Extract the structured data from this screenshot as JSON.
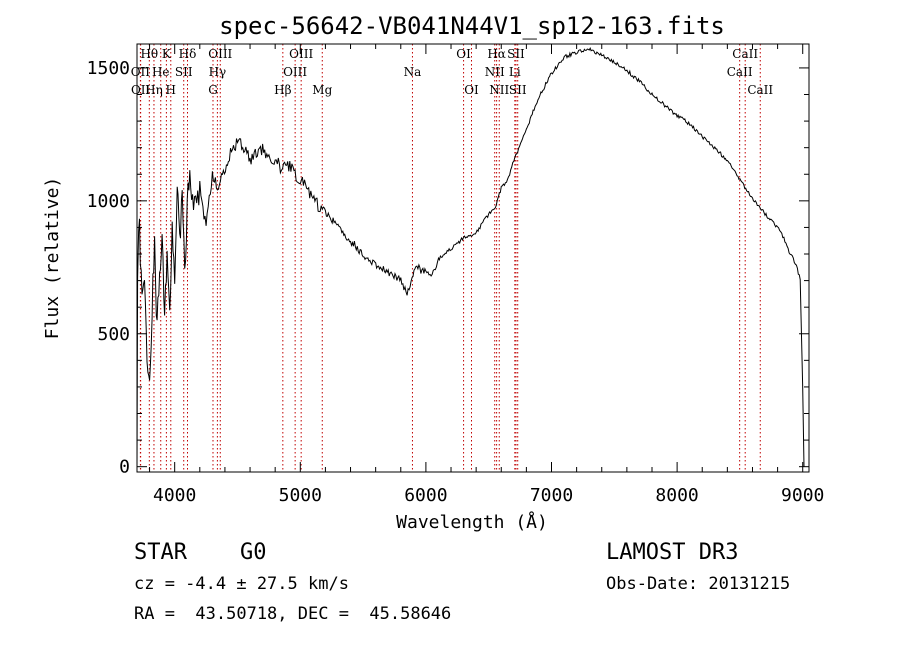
{
  "chart_data": {
    "type": "line",
    "title": "spec-56642-VB041N44V1_sp12-163.fits",
    "xlabel": "Wavelength (Å)",
    "ylabel": "Flux (relative)",
    "xlim": [
      3700,
      9050
    ],
    "ylim": [
      -20,
      1590
    ],
    "x_ticks": [
      4000,
      5000,
      6000,
      7000,
      8000,
      9000
    ],
    "y_ticks": [
      0,
      500,
      1000,
      1500
    ],
    "series": [
      {
        "name": "flux",
        "x": [
          3700,
          3705,
          3720,
          3740,
          3760,
          3780,
          3800,
          3820,
          3840,
          3860,
          3880,
          3900,
          3920,
          3940,
          3960,
          3980,
          4000,
          4020,
          4040,
          4060,
          4080,
          4100,
          4120,
          4150,
          4200,
          4250,
          4300,
          4340,
          4380,
          4420,
          4460,
          4500,
          4550,
          4600,
          4650,
          4700,
          4750,
          4800,
          4850,
          4900,
          4950,
          5000,
          5050,
          5100,
          5150,
          5200,
          5300,
          5400,
          5500,
          5600,
          5700,
          5800,
          5850,
          5890,
          5920,
          5960,
          6000,
          6050,
          6100,
          6200,
          6300,
          6400,
          6500,
          6560,
          6570,
          6600,
          6650,
          6700,
          6800,
          6900,
          7000,
          7100,
          7200,
          7300,
          7400,
          7500,
          7600,
          7700,
          7800,
          7900,
          8000,
          8100,
          8200,
          8300,
          8400,
          8500,
          8600,
          8700,
          8800,
          8850,
          8900,
          8950,
          8980,
          9000,
          9010
        ],
        "y": [
          0,
          750,
          900,
          650,
          700,
          450,
          300,
          600,
          850,
          500,
          750,
          850,
          600,
          800,
          550,
          900,
          700,
          1050,
          850,
          1000,
          700,
          1000,
          1100,
          950,
          1050,
          900,
          1100,
          1050,
          1100,
          1150,
          1200,
          1220,
          1200,
          1150,
          1180,
          1200,
          1150,
          1160,
          1120,
          1140,
          1110,
          1080,
          1050,
          1000,
          980,
          960,
          900,
          850,
          800,
          760,
          730,
          700,
          650,
          700,
          760,
          740,
          730,
          720,
          780,
          820,
          860,
          880,
          950,
          980,
          1000,
          1050,
          1080,
          1150,
          1270,
          1390,
          1480,
          1540,
          1560,
          1570,
          1550,
          1520,
          1490,
          1450,
          1400,
          1360,
          1320,
          1290,
          1240,
          1200,
          1150,
          1080,
          1010,
          950,
          900,
          860,
          800,
          760,
          700,
          300,
          0
        ]
      }
    ],
    "lines_top": [
      {
        "label": "Hθ",
        "x": 3798
      },
      {
        "label": "K",
        "x": 3934
      },
      {
        "label": "Hδ",
        "x": 4102
      },
      {
        "label": "OIII",
        "x": 4363
      },
      {
        "label": "OIII",
        "x": 5007
      },
      {
        "label": "OI",
        "x": 6300
      },
      {
        "label": "Hα",
        "x": 6563
      },
      {
        "label": "SII",
        "x": 6717
      },
      {
        "label": "CaII",
        "x": 8542
      }
    ],
    "lines_mid": [
      {
        "label": "OII",
        "x": 3727
      },
      {
        "label": "He",
        "x": 3889
      },
      {
        "label": "SII",
        "x": 4072
      },
      {
        "label": "Hγ",
        "x": 4340
      },
      {
        "label": "OIII",
        "x": 4959
      },
      {
        "label": "Na",
        "x": 5893
      },
      {
        "label": "NII",
        "x": 6548
      },
      {
        "label": "Li",
        "x": 6708
      },
      {
        "label": "CaII",
        "x": 8498
      }
    ],
    "lines_low": [
      {
        "label": "OII",
        "x": 3729
      },
      {
        "label": "Hη",
        "x": 3835
      },
      {
        "label": "H",
        "x": 3969
      },
      {
        "label": "G",
        "x": 4305
      },
      {
        "label": "Hβ",
        "x": 4861
      },
      {
        "label": "Mg",
        "x": 5175
      },
      {
        "label": "OI",
        "x": 6363
      },
      {
        "label": "NII",
        "x": 6584
      },
      {
        "label": "SII",
        "x": 6731
      },
      {
        "label": "CaII",
        "x": 8662
      }
    ]
  },
  "info": {
    "class": "STAR",
    "subclass": "G0",
    "cz": "cz = -4.4 ± 27.5 km/s",
    "coords": "RA =  43.50718, DEC =  45.58646",
    "survey": "LAMOST DR3",
    "obs_date": "Obs-Date: 20131215"
  }
}
